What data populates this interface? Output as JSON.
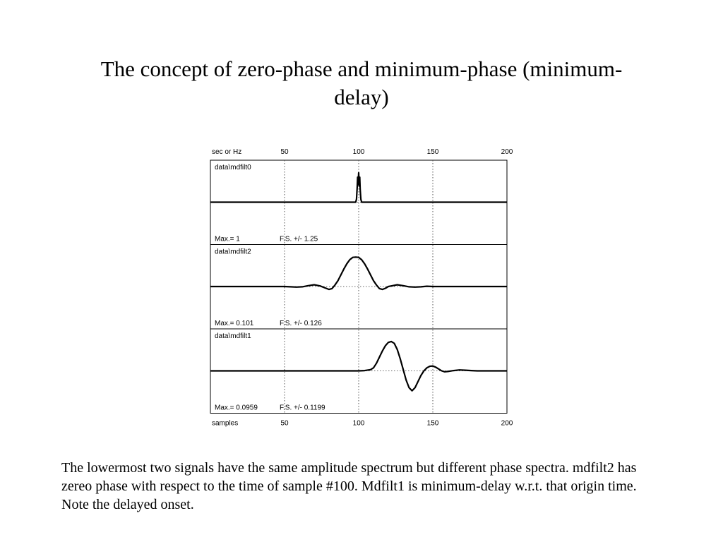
{
  "slide": {
    "title_line1": "The concept of zero-phase and minimum-phase (minimum-",
    "title_line2": "delay)",
    "caption": "The lowermost two signals have the same amplitude spectrum but different phase spectra. mdfilt2 has zereo phase with respect to the time of sample #100. Mdfilt1 is minimum-delay w.r.t. that origin time. Note the delayed onset."
  },
  "chart_data": {
    "type": "line",
    "top_axis_label": "sec or Hz",
    "bottom_axis_label": "samples",
    "x_ticks": [
      50,
      100,
      150,
      200
    ],
    "xlim": [
      0,
      200
    ],
    "grid_x": true,
    "series": [
      {
        "name": "data\\mdfilt0",
        "max_label": "Max.= 1",
        "fs_label": "F.S. +/-  1.25",
        "full_scale": 1.25,
        "x": [
          0,
          98,
          98.5,
          99,
          99.3,
          99.6,
          100,
          100.4,
          100.7,
          101,
          101.5,
          102,
          200
        ],
        "y": [
          0,
          0,
          0.1,
          0.5,
          0.85,
          0.6,
          1.0,
          0.55,
          0.85,
          0.45,
          0.1,
          0,
          0
        ]
      },
      {
        "name": "data\\mdfilt2",
        "max_label": "Max.= 0.101",
        "fs_label": "F.S. +/-  0.126",
        "full_scale": 0.126,
        "x": [
          0,
          50,
          54,
          58,
          62,
          66,
          70,
          74,
          78,
          80,
          82,
          84,
          86,
          88,
          90,
          92,
          94,
          96,
          98,
          100,
          102,
          104,
          106,
          108,
          110,
          112,
          114,
          116,
          118,
          120,
          122,
          126,
          130,
          134,
          138,
          142,
          146,
          150,
          200
        ],
        "y": [
          0,
          0,
          -0.001,
          -0.002,
          -0.001,
          0.003,
          0.006,
          0.002,
          -0.006,
          -0.01,
          -0.007,
          0.005,
          0.02,
          0.04,
          0.06,
          0.078,
          0.092,
          0.1,
          0.101,
          0.1,
          0.092,
          0.078,
          0.06,
          0.04,
          0.02,
          0.005,
          -0.007,
          -0.01,
          -0.006,
          0.0,
          0.002,
          0.006,
          0.003,
          -0.001,
          -0.002,
          -0.001,
          0.001,
          0,
          0
        ]
      },
      {
        "name": "data\\mdfilt1",
        "max_label": "Max.= 0.0959",
        "fs_label": "F.S. +/-  0.1199",
        "full_scale": 0.1199,
        "x": [
          0,
          100,
          104,
          108,
          110,
          112,
          114,
          116,
          118,
          120,
          122,
          124,
          126,
          128,
          130,
          132,
          134,
          136,
          138,
          140,
          142,
          144,
          146,
          148,
          150,
          152,
          154,
          156,
          158,
          160,
          164,
          168,
          172,
          176,
          180,
          190,
          200
        ],
        "y": [
          0,
          0,
          0.001,
          0.004,
          0.01,
          0.025,
          0.045,
          0.065,
          0.082,
          0.093,
          0.0959,
          0.09,
          0.07,
          0.04,
          0.005,
          -0.03,
          -0.055,
          -0.065,
          -0.055,
          -0.035,
          -0.015,
          0.0,
          0.01,
          0.015,
          0.016,
          0.012,
          0.006,
          0.0,
          -0.003,
          -0.002,
          0.001,
          0.003,
          0.002,
          0.001,
          0.0,
          0,
          0
        ]
      }
    ]
  }
}
